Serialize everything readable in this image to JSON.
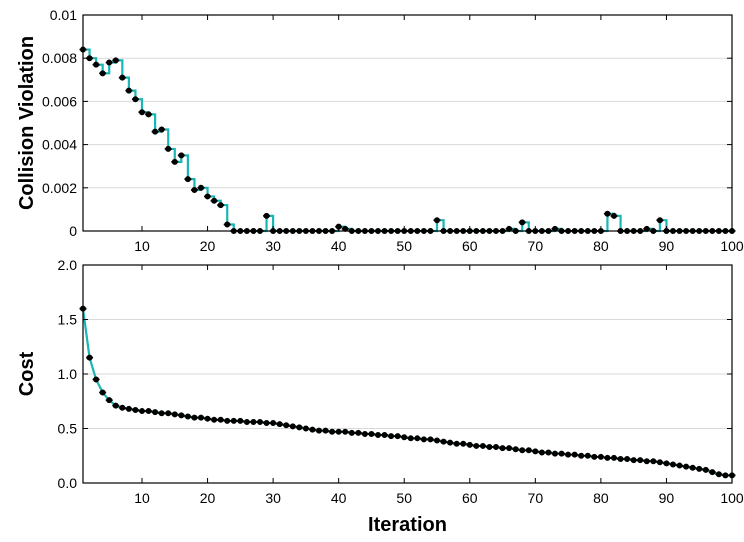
{
  "chart_data": [
    {
      "type": "line",
      "step": true,
      "ylabel": "Collision Violation",
      "xlabel": "",
      "xlim": [
        1,
        100
      ],
      "ylim": [
        0,
        0.01
      ],
      "xticks": [
        10,
        20,
        30,
        40,
        50,
        60,
        70,
        80,
        90,
        100
      ],
      "yticks": [
        0,
        0.002,
        0.004,
        0.006,
        0.008,
        0.01
      ],
      "ytick_labels": [
        "0",
        "0.002",
        "0.004",
        "0.006",
        "0.008",
        "0.01"
      ],
      "grid": "horizontal",
      "line_color": "#1cb5b5",
      "marker_color": "#000000",
      "series": [
        {
          "x": [
            1,
            2,
            3,
            4,
            5,
            6,
            7,
            8,
            9,
            10,
            11,
            12,
            13,
            14,
            15,
            16,
            17,
            18,
            19,
            20,
            21,
            22,
            23,
            24,
            25,
            26,
            27,
            28,
            29,
            30,
            31,
            32,
            33,
            34,
            35,
            36,
            37,
            38,
            39,
            40,
            41,
            42,
            43,
            44,
            45,
            46,
            47,
            48,
            49,
            50,
            51,
            52,
            53,
            54,
            55,
            56,
            57,
            58,
            59,
            60,
            61,
            62,
            63,
            64,
            65,
            66,
            67,
            68,
            69,
            70,
            71,
            72,
            73,
            74,
            75,
            76,
            77,
            78,
            79,
            80,
            81,
            82,
            83,
            84,
            85,
            86,
            87,
            88,
            89,
            90,
            91,
            92,
            93,
            94,
            95,
            96,
            97,
            98,
            99,
            100
          ],
          "values": [
            0.0084,
            0.008,
            0.0077,
            0.0073,
            0.0078,
            0.0079,
            0.0071,
            0.0065,
            0.0061,
            0.0055,
            0.0054,
            0.0046,
            0.0047,
            0.0038,
            0.0032,
            0.0035,
            0.0024,
            0.0019,
            0.002,
            0.0016,
            0.0014,
            0.0012,
            0.0003,
            0.0,
            0.0,
            0.0,
            0.0,
            0.0,
            0.0007,
            0.0,
            0.0,
            0.0,
            0.0,
            0.0,
            0.0,
            0.0,
            0.0,
            0.0,
            0.0,
            0.0002,
            0.0001,
            0.0,
            0.0,
            0.0,
            0.0,
            0.0,
            0.0,
            0.0,
            0.0,
            0.0,
            0.0,
            0.0,
            0.0,
            0.0,
            0.0005,
            0.0,
            0.0,
            0.0,
            0.0,
            0.0,
            0.0,
            0.0,
            0.0,
            0.0,
            0.0,
            0.0001,
            0.0,
            0.0004,
            0.0,
            0.0,
            0.0,
            0.0,
            0.0001,
            0.0,
            0.0,
            0.0,
            0.0,
            0.0,
            0.0,
            0.0,
            0.0008,
            0.0007,
            0.0,
            0.0,
            0.0,
            0.0,
            0.0001,
            0.0,
            0.0005,
            0.0,
            0.0,
            0.0,
            0.0,
            0.0,
            0.0,
            0.0,
            0.0,
            0.0,
            0.0,
            0.0
          ]
        }
      ]
    },
    {
      "type": "line",
      "step": false,
      "ylabel": "Cost",
      "xlabel": "Iteration",
      "xlim": [
        1,
        100
      ],
      "ylim": [
        0,
        2.0
      ],
      "xticks": [
        10,
        20,
        30,
        40,
        50,
        60,
        70,
        80,
        90,
        100
      ],
      "yticks": [
        0,
        0.5,
        1.0,
        1.5,
        2.0
      ],
      "ytick_labels": [
        "0.0",
        "0.5",
        "1.0",
        "1.5",
        "2.0"
      ],
      "grid": "horizontal",
      "line_color": "#1cb5b5",
      "marker_color": "#000000",
      "series": [
        {
          "x": [
            1,
            2,
            3,
            4,
            5,
            6,
            7,
            8,
            9,
            10,
            11,
            12,
            13,
            14,
            15,
            16,
            17,
            18,
            19,
            20,
            21,
            22,
            23,
            24,
            25,
            26,
            27,
            28,
            29,
            30,
            31,
            32,
            33,
            34,
            35,
            36,
            37,
            38,
            39,
            40,
            41,
            42,
            43,
            44,
            45,
            46,
            47,
            48,
            49,
            50,
            51,
            52,
            53,
            54,
            55,
            56,
            57,
            58,
            59,
            60,
            61,
            62,
            63,
            64,
            65,
            66,
            67,
            68,
            69,
            70,
            71,
            72,
            73,
            74,
            75,
            76,
            77,
            78,
            79,
            80,
            81,
            82,
            83,
            84,
            85,
            86,
            87,
            88,
            89,
            90,
            91,
            92,
            93,
            94,
            95,
            96,
            97,
            98,
            99,
            100
          ],
          "values": [
            1.6,
            1.15,
            0.95,
            0.83,
            0.76,
            0.71,
            0.69,
            0.68,
            0.67,
            0.66,
            0.66,
            0.65,
            0.64,
            0.64,
            0.63,
            0.62,
            0.61,
            0.6,
            0.6,
            0.59,
            0.58,
            0.58,
            0.57,
            0.57,
            0.57,
            0.56,
            0.56,
            0.56,
            0.55,
            0.55,
            0.54,
            0.53,
            0.52,
            0.51,
            0.5,
            0.49,
            0.48,
            0.48,
            0.47,
            0.47,
            0.47,
            0.46,
            0.46,
            0.45,
            0.45,
            0.44,
            0.44,
            0.43,
            0.43,
            0.42,
            0.41,
            0.41,
            0.4,
            0.4,
            0.39,
            0.38,
            0.37,
            0.36,
            0.36,
            0.35,
            0.34,
            0.34,
            0.33,
            0.33,
            0.32,
            0.32,
            0.31,
            0.3,
            0.3,
            0.29,
            0.28,
            0.28,
            0.27,
            0.27,
            0.26,
            0.26,
            0.25,
            0.25,
            0.24,
            0.24,
            0.23,
            0.23,
            0.22,
            0.22,
            0.21,
            0.21,
            0.2,
            0.2,
            0.19,
            0.18,
            0.17,
            0.16,
            0.15,
            0.14,
            0.13,
            0.12,
            0.1,
            0.08,
            0.07,
            0.07
          ]
        }
      ]
    }
  ]
}
